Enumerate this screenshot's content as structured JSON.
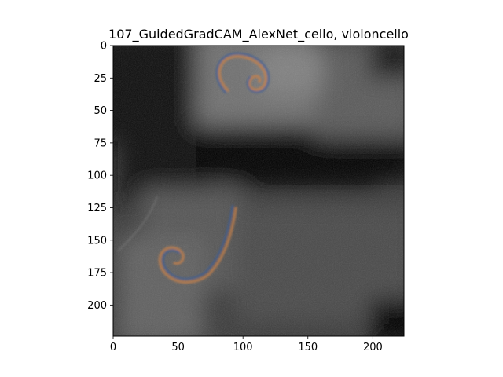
{
  "chart_data": {
    "type": "heatmap",
    "title": "107_GuidedGradCAM_AlexNet_cello, violoncello",
    "xlabel": "",
    "ylabel": "",
    "xlim": [
      0,
      224
    ],
    "ylim": [
      224,
      0
    ],
    "x_ticks": [
      0,
      50,
      100,
      150,
      200
    ],
    "y_ticks": [
      0,
      25,
      50,
      75,
      100,
      125,
      150,
      175,
      200
    ],
    "grid": false,
    "colormap": "grayscale image with faint colored guided-gradient edges",
    "features": [
      {
        "name": "upper-scroll",
        "cx": 110,
        "cy": 24,
        "r": 16
      },
      {
        "name": "lower-scroll",
        "cx": 48,
        "cy": 162,
        "r": 18
      }
    ]
  }
}
